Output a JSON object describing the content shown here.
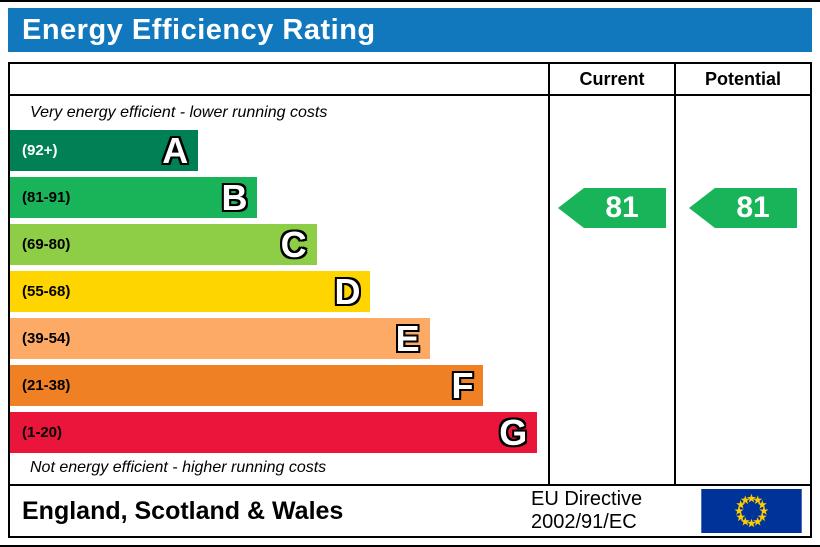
{
  "title": "Energy Efficiency Rating",
  "table": {
    "current_header": "Current",
    "potential_header": "Potential"
  },
  "notes": {
    "top": "Very energy efficient - lower running costs",
    "bottom": "Not energy efficient - higher running costs"
  },
  "chart_data": {
    "type": "bar",
    "title": "Energy Efficiency Rating",
    "orientation": "horizontal",
    "bands": [
      {
        "letter": "A",
        "range": "(92+)",
        "color": "#008054",
        "range_color": "#ffffff",
        "width_pct": 35
      },
      {
        "letter": "B",
        "range": "(81-91)",
        "color": "#19b459",
        "range_color": "#000000",
        "width_pct": 46
      },
      {
        "letter": "C",
        "range": "(69-80)",
        "color": "#8dce46",
        "range_color": "#000000",
        "width_pct": 57
      },
      {
        "letter": "D",
        "range": "(55-68)",
        "color": "#ffd500",
        "range_color": "#000000",
        "width_pct": 67
      },
      {
        "letter": "E",
        "range": "(39-54)",
        "color": "#fcaa65",
        "range_color": "#000000",
        "width_pct": 78
      },
      {
        "letter": "F",
        "range": "(21-38)",
        "color": "#ef8023",
        "range_color": "#000000",
        "width_pct": 88
      },
      {
        "letter": "G",
        "range": "(1-20)",
        "color": "#e9153b",
        "range_color": "#000000",
        "width_pct": 98
      }
    ],
    "current": {
      "value": 81,
      "band": "B",
      "color": "#19b459"
    },
    "potential": {
      "value": 81,
      "band": "B",
      "color": "#19b459"
    }
  },
  "footer": {
    "region": "England, Scotland & Wales",
    "directive_line1": "EU Directive",
    "directive_line2": "2002/91/EC",
    "flag_colors": {
      "field": "#003399",
      "stars": "#ffcc00"
    }
  },
  "colors": {
    "header_bar": "#1278be"
  }
}
